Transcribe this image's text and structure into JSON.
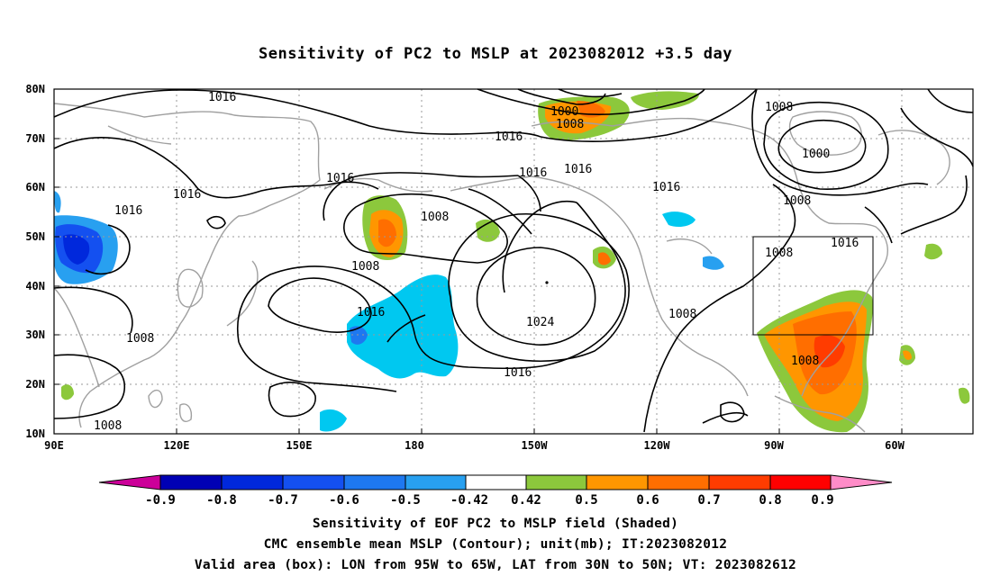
{
  "title": "Sensitivity of PC2 to MSLP at 2023082012 +3.5 day",
  "axes": {
    "lat_ticks": [
      "80N",
      "70N",
      "60N",
      "50N",
      "40N",
      "30N",
      "20N",
      "10N"
    ],
    "lon_ticks": [
      "90E",
      "120E",
      "150E",
      "180",
      "150W",
      "120W",
      "90W",
      "60W"
    ]
  },
  "contour_labels": [
    "1016",
    "1016",
    "1016",
    "1016",
    "1016",
    "1016",
    "1016",
    "1016",
    "1016",
    "1016",
    "1016",
    "1008",
    "1008",
    "1008",
    "1008",
    "1008",
    "1008",
    "1008",
    "1008",
    "1000",
    "1000",
    "1024"
  ],
  "colorbar": {
    "labels": [
      "-0.9",
      "-0.8",
      "-0.7",
      "-0.6",
      "-0.5",
      "-0.42",
      "0.42",
      "0.5",
      "0.6",
      "0.7",
      "0.8",
      "0.9"
    ],
    "colors": [
      "#cc0099",
      "#0000b4",
      "#0028dc",
      "#1450f0",
      "#1e78f0",
      "#28a0f0",
      "#00c8f0",
      "#ffffff",
      "#8cc83c",
      "#ff9600",
      "#ff6e00",
      "#ff3c00",
      "#ff0000",
      "#ff8cc8"
    ]
  },
  "valid_box": {
    "lon_west": -95,
    "lon_east": -65,
    "lat_south": 30,
    "lat_north": 50
  },
  "footer": {
    "line1": "Sensitivity of EOF PC2 to MSLP field (Shaded)",
    "line2": "CMC ensemble mean MSLP (Contour); unit(mb); IT:2023082012",
    "line3": "Valid area (box): LON from 95W to 65W, LAT from 30N to 50N; VT: 2023082612"
  }
}
